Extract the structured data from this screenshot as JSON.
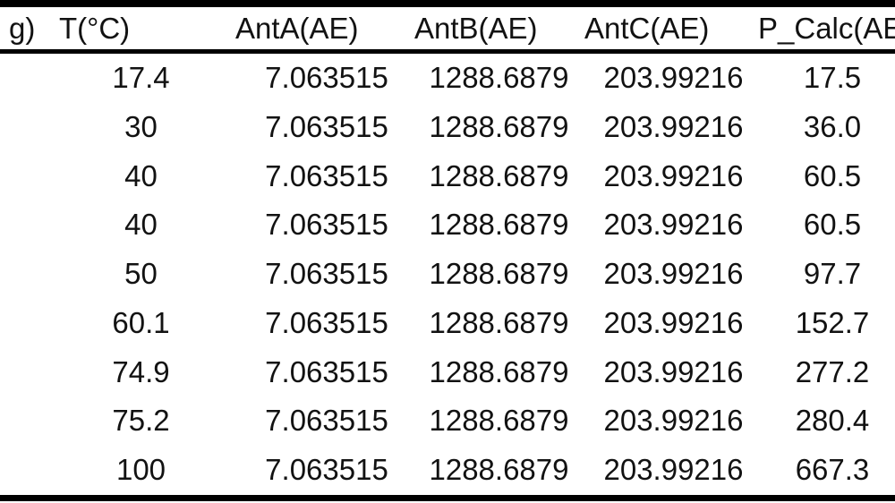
{
  "table": {
    "columns": [
      {
        "label": "g)"
      },
      {
        "label": "T(°C)"
      },
      {
        "label": "AntA(AE)"
      },
      {
        "label": "AntB(AE)"
      },
      {
        "label": "AntC(AE)"
      },
      {
        "label": "P_Calc(AE"
      }
    ],
    "rows": [
      [
        "",
        "17.4",
        "7.063515",
        "1288.6879",
        "203.99216",
        "17.5"
      ],
      [
        "",
        "30",
        "7.063515",
        "1288.6879",
        "203.99216",
        "36.0"
      ],
      [
        "",
        "40",
        "7.063515",
        "1288.6879",
        "203.99216",
        "60.5"
      ],
      [
        "",
        "40",
        "7.063515",
        "1288.6879",
        "203.99216",
        "60.5"
      ],
      [
        "",
        "50",
        "7.063515",
        "1288.6879",
        "203.99216",
        "97.7"
      ],
      [
        "",
        "60.1",
        "7.063515",
        "1288.6879",
        "203.99216",
        "152.7"
      ],
      [
        "",
        "74.9",
        "7.063515",
        "1288.6879",
        "203.99216",
        "277.2"
      ],
      [
        "",
        "75.2",
        "7.063515",
        "1288.6879",
        "203.99216",
        "280.4"
      ],
      [
        "",
        "100",
        "7.063515",
        "1288.6879",
        "203.99216",
        "667.3"
      ]
    ]
  },
  "colors": {
    "background": "#ffffff",
    "text": "#121212",
    "rule": "#000000"
  }
}
